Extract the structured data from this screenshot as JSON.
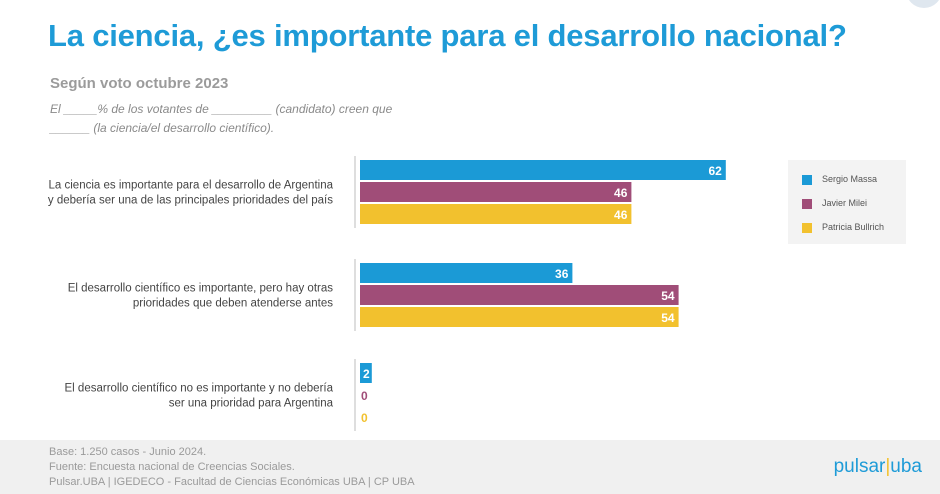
{
  "title": "La ciencia, ¿es importante para el desarrollo nacional?",
  "subtitle": "Según voto octubre 2023",
  "note_line1": "El _____% de los votantes de _________ (candidato) creen que",
  "note_line2": "______ (la ciencia/el desarrollo científico).",
  "chart_data": {
    "type": "bar",
    "orientation": "horizontal",
    "categories": [
      [
        "La ciencia es importante para el desarrollo de Argentina",
        "y debería ser una de las principales prioridades del país"
      ],
      [
        "El desarrollo científico es importante, pero hay otras",
        "prioridades que deben atenderse antes"
      ],
      [
        "El desarrollo científico no es importante y no debería",
        "ser una prioridad para Argentina"
      ]
    ],
    "series": [
      {
        "name": "Sergio Massa",
        "color": "#1b9ad6",
        "values": [
          62,
          36,
          2
        ]
      },
      {
        "name": "Javier Milei",
        "color": "#a04d78",
        "values": [
          46,
          54,
          0
        ]
      },
      {
        "name": "Patricia Bullrich",
        "color": "#f2c12e",
        "values": [
          46,
          54,
          0
        ]
      }
    ],
    "data_labels": true,
    "legend_position": "right",
    "grid": false
  },
  "footer": {
    "line1": "Base: 1.250 casos - Junio 2024.",
    "line2": "Fuente: Encuesta nacional de Creencias Sociales.",
    "line3": "Pulsar.UBA | IGEDECO - Facultad de Ciencias Económicas UBA | CP UBA"
  },
  "brand": {
    "left": "pulsar",
    "sep": "|",
    "right": "uba"
  }
}
